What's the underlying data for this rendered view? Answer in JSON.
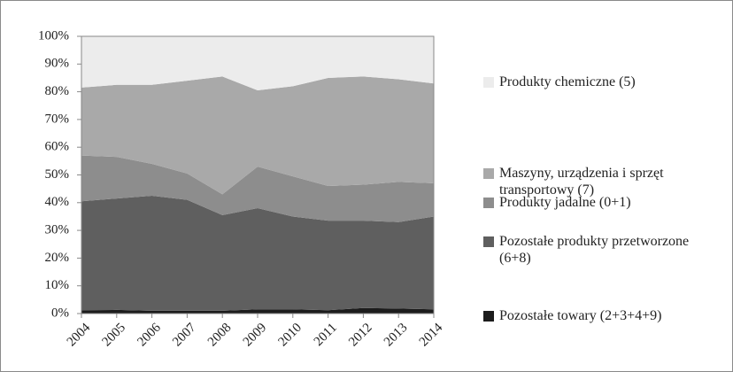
{
  "chart_data": {
    "type": "area",
    "categories": [
      "2004",
      "2005",
      "2006",
      "2007",
      "2008",
      "2009",
      "2010",
      "2011",
      "2012",
      "2013",
      "2014"
    ],
    "series": [
      {
        "name": "Pozostałe towary (2+3+4+9)",
        "color": "#1c1c1c",
        "values": [
          1.2,
          1.3,
          1,
          1,
          1,
          1.5,
          1.5,
          1.2,
          2,
          1.8,
          1.5
        ]
      },
      {
        "name": "Pozostałe produkty przetworzone (6+8)",
        "color": "#5f5f5f",
        "values": [
          39.3,
          40.2,
          41.5,
          40,
          34.5,
          36.5,
          33.5,
          32.3,
          31.5,
          31.2,
          33.5
        ]
      },
      {
        "name": "Produkty jadalne (0+1)",
        "color": "#8d8d8d",
        "values": [
          16.5,
          15,
          11.5,
          9.5,
          7.5,
          15,
          14.5,
          12.5,
          13,
          14.5,
          12
        ]
      },
      {
        "name": "Maszyny, urządzenia i sprzęt transportowy (7)",
        "color": "#a9a9a9",
        "values": [
          24.5,
          26,
          28.5,
          33.5,
          42.5,
          27.5,
          32.5,
          39,
          39,
          37,
          36
        ]
      },
      {
        "name": "Produkty chemiczne (5)",
        "color": "#ececec",
        "values": [
          18.5,
          17.5,
          17.5,
          16,
          14.5,
          19.5,
          18,
          15,
          14.5,
          15.5,
          17
        ]
      }
    ],
    "stacked": true,
    "ylim": [
      0,
      100
    ],
    "yticks": [
      {
        "value": 0,
        "label": "0%"
      },
      {
        "value": 10,
        "label": "10%"
      },
      {
        "value": 20,
        "label": "20%"
      },
      {
        "value": 30,
        "label": "30%"
      },
      {
        "value": 40,
        "label": "40%"
      },
      {
        "value": 50,
        "label": "50%"
      },
      {
        "value": 60,
        "label": "60%"
      },
      {
        "value": 70,
        "label": "70%"
      },
      {
        "value": 80,
        "label": "80%"
      },
      {
        "value": 90,
        "label": "90%"
      },
      {
        "value": 100,
        "label": "100%"
      }
    ],
    "legend": "right"
  }
}
